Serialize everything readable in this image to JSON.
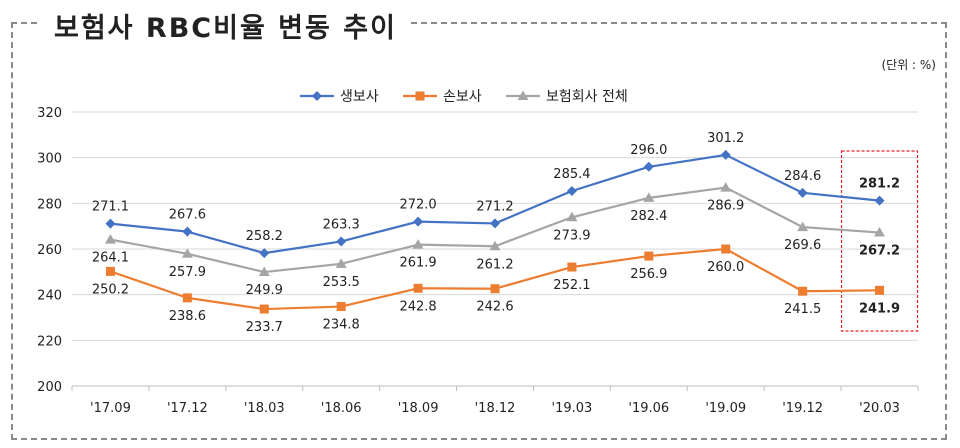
{
  "page": {
    "title": "보험사 RBC비율 변동 추이",
    "unit": "(단위 : %)"
  },
  "chart_data": {
    "type": "line",
    "title": "보험사 RBC비율 변동 추이",
    "unit_label": "(단위 : %)",
    "categories": [
      "'17.09",
      "'17.12",
      "'18.03",
      "'18.06",
      "'18.09",
      "'18.12",
      "'19.03",
      "'19.06",
      "'19.09",
      "'19.12",
      "'20.03"
    ],
    "ylim": [
      200,
      320
    ],
    "yticks": [
      200,
      220,
      240,
      260,
      280,
      300,
      320
    ],
    "legend_position": "top-center",
    "highlight_last": true,
    "series": [
      {
        "name": "생보사",
        "color": "#4472C4",
        "marker": "diamond",
        "values": [
          271.1,
          267.6,
          258.2,
          263.3,
          272.0,
          271.2,
          285.4,
          296.0,
          301.2,
          284.6,
          281.2
        ]
      },
      {
        "name": "손보사",
        "color": "#ED7D31",
        "marker": "square",
        "values": [
          250.2,
          238.6,
          233.7,
          234.8,
          242.8,
          242.6,
          252.1,
          256.9,
          260.0,
          241.5,
          241.9
        ]
      },
      {
        "name": "보험회사 전체",
        "color": "#A5A5A5",
        "marker": "triangle",
        "values": [
          264.1,
          257.9,
          249.9,
          253.5,
          261.9,
          261.2,
          273.9,
          282.4,
          286.9,
          269.6,
          267.2
        ]
      }
    ]
  }
}
